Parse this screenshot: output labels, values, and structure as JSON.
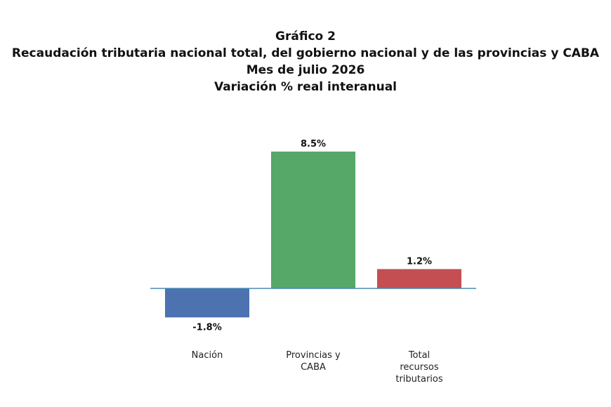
{
  "chart_data": {
    "type": "bar",
    "title": [
      "Gráfico 2",
      "Recaudación tributaria nacional total, del gobierno nacional y de las provincias y CABA",
      "Mes de julio 2026",
      "Variación % real interanual"
    ],
    "categories": [
      [
        "Nación"
      ],
      [
        "Provincias y",
        "CABA"
      ],
      [
        "Total",
        "recursos",
        "tributarios"
      ]
    ],
    "values": [
      -1.8,
      8.5,
      1.2
    ],
    "value_labels": [
      "-1.8%",
      "8.5%",
      "1.2%"
    ],
    "colors": [
      "#4c72b0",
      "#55a868",
      "#c44e52"
    ],
    "axis_color": "#4a8ab5",
    "ylim": [
      -1.8,
      8.5
    ],
    "grid": false,
    "legend": "none"
  }
}
